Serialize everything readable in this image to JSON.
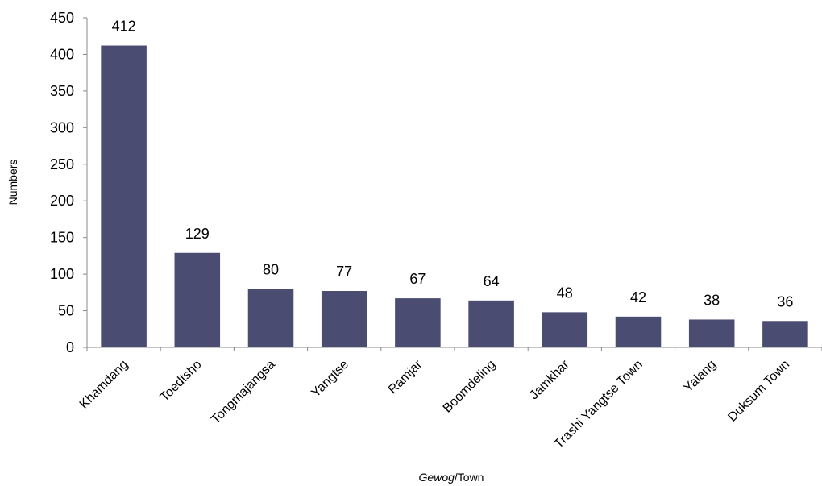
{
  "chart_data": {
    "type": "bar",
    "title": "",
    "xlabel_italic": "Gewog",
    "xlabel_rest": "/Town",
    "ylabel": "Numbers",
    "categories": [
      "Khamdang",
      "Toedtsho",
      "Tongmajangsa",
      "Yangtse",
      "Ramjar",
      "Boomdeling",
      "Jamkhar",
      "Trashi Yangtse Town",
      "Yalang",
      "Duksum Town"
    ],
    "values": [
      412,
      129,
      80,
      77,
      67,
      64,
      48,
      42,
      38,
      36
    ],
    "ylim": [
      0,
      450
    ],
    "yticks": [
      0,
      50,
      100,
      150,
      200,
      250,
      300,
      350,
      400,
      450
    ],
    "bar_color": "#4a4c72",
    "grid": false,
    "legend": "none"
  }
}
